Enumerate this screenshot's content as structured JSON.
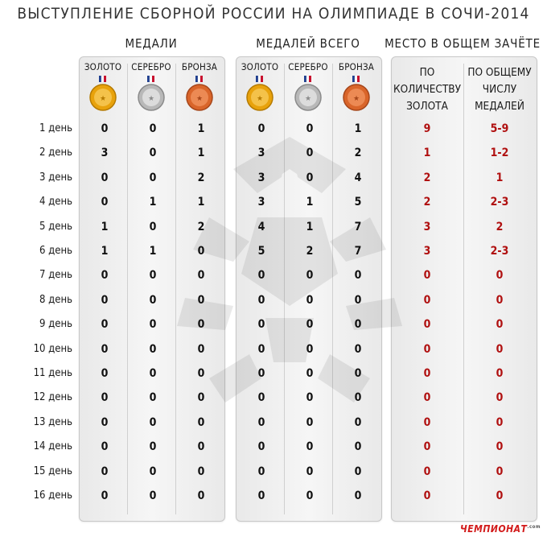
{
  "title": "ВЫСТУПЛЕНИЕ СБОРНОЙ РОССИИ НА ОЛИМПИАДЕ В СОЧИ-2014",
  "groups": {
    "medals": "МЕДАЛИ",
    "total": "МЕДАЛЕЙ ВСЕГО",
    "place": "МЕСТО В ОБЩЕМ ЗАЧЁТЕ"
  },
  "medal_headers": [
    "ЗОЛОТО",
    "СЕРЕБРО",
    "БРОНЗА"
  ],
  "medal_headers_total": [
    "ЗОЛОТО",
    "СЕРЕБРО",
    "БРОНЗА"
  ],
  "rank_headers": {
    "gold": [
      "ПО",
      "КОЛИЧЕСТВУ",
      "ЗОЛОТА"
    ],
    "total": [
      "ПО ОБЩЕМУ",
      "ЧИСЛУ",
      "МЕДАЛЕЙ"
    ]
  },
  "medal_colors": {
    "gold": "#e8a20c",
    "silver": "#b8b8b8",
    "bronze": "#d9652a"
  },
  "rows": [
    {
      "day": "1 день",
      "g": "0",
      "s": "0",
      "b": "1",
      "tg": "0",
      "ts": "0",
      "tb": "1",
      "rg": "9",
      "rt": "5-9"
    },
    {
      "day": "2 день",
      "g": "3",
      "s": "0",
      "b": "1",
      "tg": "3",
      "ts": "0",
      "tb": "2",
      "rg": "1",
      "rt": "1-2"
    },
    {
      "day": "3 день",
      "g": "0",
      "s": "0",
      "b": "2",
      "tg": "3",
      "ts": "0",
      "tb": "4",
      "rg": "2",
      "rt": "1"
    },
    {
      "day": "4 день",
      "g": "0",
      "s": "1",
      "b": "1",
      "tg": "3",
      "ts": "1",
      "tb": "5",
      "rg": "2",
      "rt": "2-3"
    },
    {
      "day": "5 день",
      "g": "1",
      "s": "0",
      "b": "2",
      "tg": "4",
      "ts": "1",
      "tb": "7",
      "rg": "3",
      "rt": "2"
    },
    {
      "day": "6 день",
      "g": "1",
      "s": "1",
      "b": "0",
      "tg": "5",
      "ts": "2",
      "tb": "7",
      "rg": "3",
      "rt": "2-3"
    },
    {
      "day": "7 день",
      "g": "0",
      "s": "0",
      "b": "0",
      "tg": "0",
      "ts": "0",
      "tb": "0",
      "rg": "0",
      "rt": "0"
    },
    {
      "day": "8 день",
      "g": "0",
      "s": "0",
      "b": "0",
      "tg": "0",
      "ts": "0",
      "tb": "0",
      "rg": "0",
      "rt": "0"
    },
    {
      "day": "9 день",
      "g": "0",
      "s": "0",
      "b": "0",
      "tg": "0",
      "ts": "0",
      "tb": "0",
      "rg": "0",
      "rt": "0"
    },
    {
      "day": "10 день",
      "g": "0",
      "s": "0",
      "b": "0",
      "tg": "0",
      "ts": "0",
      "tb": "0",
      "rg": "0",
      "rt": "0"
    },
    {
      "day": "11 день",
      "g": "0",
      "s": "0",
      "b": "0",
      "tg": "0",
      "ts": "0",
      "tb": "0",
      "rg": "0",
      "rt": "0"
    },
    {
      "day": "12 день",
      "g": "0",
      "s": "0",
      "b": "0",
      "tg": "0",
      "ts": "0",
      "tb": "0",
      "rg": "0",
      "rt": "0"
    },
    {
      "day": "13 день",
      "g": "0",
      "s": "0",
      "b": "0",
      "tg": "0",
      "ts": "0",
      "tb": "0",
      "rg": "0",
      "rt": "0"
    },
    {
      "day": "14 день",
      "g": "0",
      "s": "0",
      "b": "0",
      "tg": "0",
      "ts": "0",
      "tb": "0",
      "rg": "0",
      "rt": "0"
    },
    {
      "day": "15 день",
      "g": "0",
      "s": "0",
      "b": "0",
      "tg": "0",
      "ts": "0",
      "tb": "0",
      "rg": "0",
      "rt": "0"
    },
    {
      "day": "16 день",
      "g": "0",
      "s": "0",
      "b": "0",
      "tg": "0",
      "ts": "0",
      "tb": "0",
      "rg": "0",
      "rt": "0"
    }
  ],
  "logo": {
    "brand": "ЧЕМПИОНАТ",
    "suffix": ".com"
  }
}
